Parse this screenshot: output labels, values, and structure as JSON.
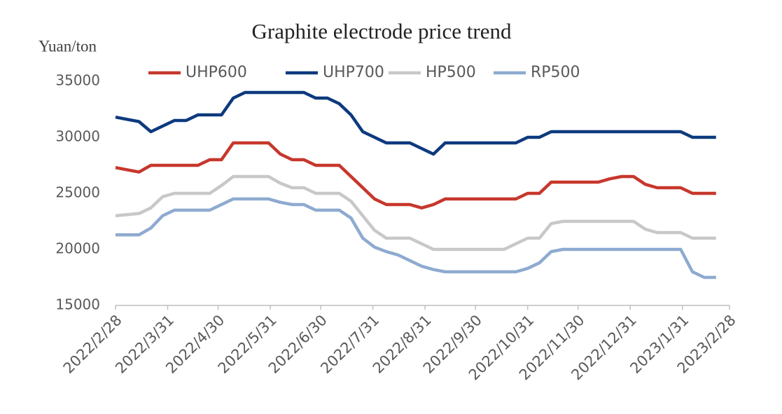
{
  "chart_data": {
    "type": "line",
    "title": "Graphite electrode price trend",
    "y_label": "Yuan/ton",
    "x": [
      "2022/2/28",
      "2022/3/7",
      "2022/3/14",
      "2022/3/21",
      "2022/3/28",
      "2022/4/4",
      "2022/4/11",
      "2022/4/18",
      "2022/4/25",
      "2022/5/2",
      "2022/5/9",
      "2022/5/16",
      "2022/5/23",
      "2022/5/30",
      "2022/6/6",
      "2022/6/13",
      "2022/6/20",
      "2022/6/27",
      "2022/7/4",
      "2022/7/11",
      "2022/7/18",
      "2022/7/25",
      "2022/8/1",
      "2022/8/8",
      "2022/8/15",
      "2022/8/22",
      "2022/8/29",
      "2022/9/5",
      "2022/9/12",
      "2022/9/19",
      "2022/9/26",
      "2022/10/3",
      "2022/10/10",
      "2022/10/17",
      "2022/10/24",
      "2022/10/31",
      "2022/11/7",
      "2022/11/14",
      "2022/11/21",
      "2022/11/28",
      "2022/12/5",
      "2022/12/12",
      "2022/12/19",
      "2022/12/26",
      "2023/1/2",
      "2023/1/9",
      "2023/1/16",
      "2023/1/23",
      "2023/1/30",
      "2023/2/6",
      "2023/2/13",
      "2023/2/20"
    ],
    "series": [
      {
        "name": "UHP600",
        "color": "#c7372c",
        "values": [
          27300,
          27100,
          26900,
          27500,
          27500,
          27500,
          27500,
          27500,
          28000,
          28000,
          29500,
          29500,
          29500,
          29500,
          28500,
          28000,
          28000,
          27500,
          27500,
          27500,
          26500,
          25500,
          24500,
          24000,
          24000,
          24000,
          23700,
          24000,
          24500,
          24500,
          24500,
          24500,
          24500,
          24500,
          24500,
          25000,
          25000,
          26000,
          26000,
          26000,
          26000,
          26000,
          26300,
          26500,
          26500,
          25800,
          25500,
          25500,
          25500,
          25000,
          25000,
          25000
        ]
      },
      {
        "name": "UHP700",
        "color": "#0d3a7e",
        "values": [
          31800,
          31600,
          31400,
          30500,
          31000,
          31500,
          31500,
          32000,
          32000,
          32000,
          33500,
          34000,
          34000,
          34000,
          34000,
          34000,
          34000,
          33500,
          33500,
          33000,
          32000,
          30500,
          30000,
          29500,
          29500,
          29500,
          29000,
          28500,
          29500,
          29500,
          29500,
          29500,
          29500,
          29500,
          29500,
          30000,
          30000,
          30500,
          30500,
          30500,
          30500,
          30500,
          30500,
          30500,
          30500,
          30500,
          30500,
          30500,
          30500,
          30000,
          30000,
          30000
        ]
      },
      {
        "name": "HP500",
        "color": "#c8c8c8",
        "values": [
          23000,
          23100,
          23200,
          23700,
          24700,
          25000,
          25000,
          25000,
          25000,
          25700,
          26500,
          26500,
          26500,
          26500,
          25900,
          25500,
          25500,
          25000,
          25000,
          25000,
          24300,
          23000,
          21700,
          21000,
          21000,
          21000,
          20500,
          20000,
          20000,
          20000,
          20000,
          20000,
          20000,
          20000,
          20500,
          21000,
          21000,
          22300,
          22500,
          22500,
          22500,
          22500,
          22500,
          22500,
          22500,
          21800,
          21500,
          21500,
          21500,
          21000,
          21000,
          21000
        ]
      },
      {
        "name": "RP500",
        "color": "#8eaad0",
        "values": [
          21300,
          21300,
          21300,
          21900,
          23000,
          23500,
          23500,
          23500,
          23500,
          24000,
          24500,
          24500,
          24500,
          24500,
          24200,
          24000,
          24000,
          23500,
          23500,
          23500,
          22800,
          21000,
          20200,
          19800,
          19500,
          19000,
          18500,
          18200,
          18000,
          18000,
          18000,
          18000,
          18000,
          18000,
          18000,
          18300,
          18800,
          19800,
          20000,
          20000,
          20000,
          20000,
          20000,
          20000,
          20000,
          20000,
          20000,
          20000,
          20000,
          18000,
          17500,
          17500
        ]
      }
    ],
    "xlim": [
      "2022/2/28",
      "2023/2/28"
    ],
    "xticks": [
      "2022/2/28",
      "2022/3/31",
      "2022/4/30",
      "2022/5/31",
      "2022/6/30",
      "2022/7/31",
      "2022/8/31",
      "2022/9/30",
      "2022/10/31",
      "2022/11/30",
      "2022/12/31",
      "2023/1/31",
      "2023/2/28"
    ],
    "ylim": [
      15000,
      35000
    ],
    "yticks": [
      15000,
      20000,
      25000,
      30000,
      35000
    ],
    "grid": false,
    "legend": "top"
  }
}
